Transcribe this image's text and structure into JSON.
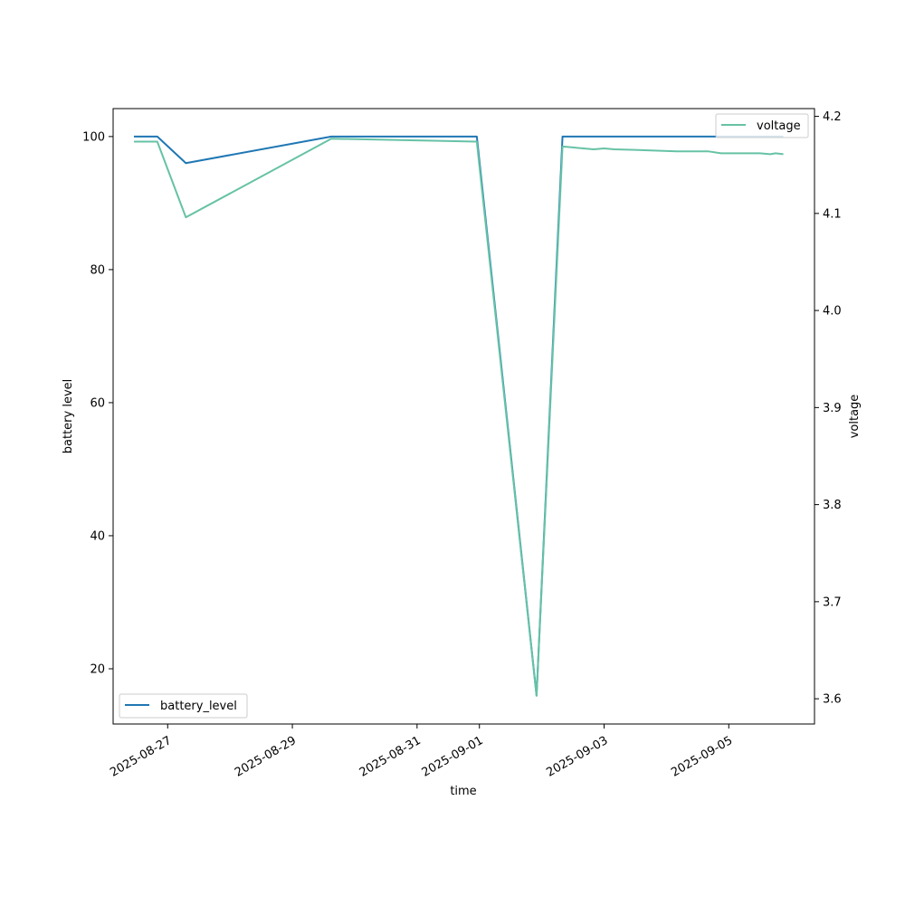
{
  "chart_data": {
    "type": "line",
    "xlabel": "time",
    "ylabel_left": "battery level",
    "ylabel_right": "voltage",
    "x_ticks": [
      "2025-08-27",
      "2025-08-29",
      "2025-08-31",
      "2025-09-01",
      "2025-09-03",
      "2025-09-05"
    ],
    "y_left_ticks": [
      "20",
      "40",
      "60",
      "80",
      "100"
    ],
    "y_right_ticks": [
      "3.6",
      "3.7",
      "3.8",
      "3.9",
      "4.0",
      "4.1",
      "4.2"
    ],
    "x_range": [
      "2025-08-26T03:00",
      "2025-09-06T09:00"
    ],
    "y_left_range": [
      11.7,
      104.2
    ],
    "y_right_range": [
      3.574,
      4.208
    ],
    "legend_left_position": "lower-left",
    "legend_right_position": "upper-right",
    "grid": false,
    "series": [
      {
        "name": "battery_level",
        "axis": "left",
        "color": "#1f77b4",
        "points": [
          [
            "2025-08-26T11:00",
            100
          ],
          [
            "2025-08-26T20:00",
            100
          ],
          [
            "2025-08-27T07:00",
            96
          ],
          [
            "2025-08-29T15:00",
            100
          ],
          [
            "2025-08-31T23:00",
            100
          ],
          [
            "2025-09-01T22:00",
            16
          ],
          [
            "2025-09-02T08:00",
            100
          ],
          [
            "2025-09-03T12:00",
            100
          ],
          [
            "2025-09-04T12:00",
            100
          ],
          [
            "2025-09-05T12:00",
            100
          ],
          [
            "2025-09-05T21:00",
            100
          ]
        ]
      },
      {
        "name": "voltage",
        "axis": "right",
        "color": "#66c2a5",
        "points": [
          [
            "2025-08-26T11:00",
            4.174
          ],
          [
            "2025-08-26T20:00",
            4.174
          ],
          [
            "2025-08-27T07:00",
            4.096
          ],
          [
            "2025-08-29T15:00",
            4.177
          ],
          [
            "2025-08-31T23:00",
            4.174
          ],
          [
            "2025-09-01T22:00",
            3.603
          ],
          [
            "2025-09-02T08:00",
            4.169
          ],
          [
            "2025-09-02T20:00",
            4.166
          ],
          [
            "2025-09-03T00:00",
            4.167
          ],
          [
            "2025-09-03T04:00",
            4.166
          ],
          [
            "2025-09-03T12:00",
            4.1655
          ],
          [
            "2025-09-04T04:00",
            4.164
          ],
          [
            "2025-09-04T16:00",
            4.164
          ],
          [
            "2025-09-04T21:00",
            4.162
          ],
          [
            "2025-09-05T12:00",
            4.162
          ],
          [
            "2025-09-05T16:00",
            4.161
          ],
          [
            "2025-09-05T18:00",
            4.162
          ],
          [
            "2025-09-05T21:00",
            4.161
          ]
        ]
      }
    ]
  }
}
